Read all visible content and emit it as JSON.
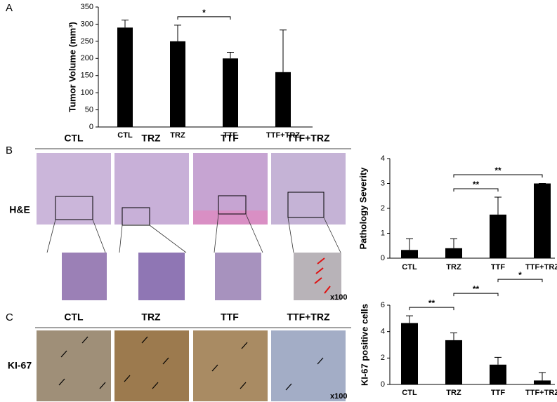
{
  "chart_data": [
    {
      "type": "bar",
      "y_label": "Tumor Volume (mm³)",
      "categories": [
        "CTL",
        "TRZ",
        "TTF",
        "TTF+TRZ"
      ],
      "values": [
        290,
        250,
        200,
        160
      ],
      "errors": [
        22,
        47,
        18,
        123
      ],
      "color": "#000000",
      "ylim": [
        0,
        350
      ],
      "yticks": [
        0,
        50,
        100,
        150,
        200,
        250,
        300,
        350
      ],
      "annotations": [
        {
          "text": "*",
          "between": [
            1,
            2
          ]
        }
      ]
    },
    {
      "type": "bar",
      "y_label": "Pathology Severity",
      "categories": [
        "CTL",
        "TRZ",
        "TTF",
        "TTF+TRZ"
      ],
      "values": [
        0.33,
        0.4,
        1.75,
        3.0
      ],
      "errors": [
        0.45,
        0.38,
        0.7,
        0
      ],
      "color": "#000000",
      "ylim": [
        0,
        4
      ],
      "yticks": [
        0,
        1,
        2,
        3,
        4
      ],
      "annotations": [
        {
          "text": "**",
          "between": [
            1,
            2
          ]
        },
        {
          "text": "**",
          "between": [
            1,
            3
          ]
        }
      ]
    },
    {
      "type": "bar",
      "y_label": "KI-67 positive cells",
      "categories": [
        "CTL",
        "TRZ",
        "TTF",
        "TTF+TRZ"
      ],
      "values": [
        4.65,
        3.35,
        1.5,
        0.3
      ],
      "errors": [
        0.55,
        0.55,
        0.55,
        0.6
      ],
      "color": "#000000",
      "ylim": [
        0,
        6
      ],
      "yticks": [
        0,
        2,
        4,
        6
      ],
      "annotations": [
        {
          "text": "**",
          "between": [
            0,
            1
          ]
        },
        {
          "text": "**",
          "between": [
            1,
            2
          ]
        },
        {
          "text": "*",
          "between": [
            2,
            3
          ]
        }
      ]
    }
  ],
  "figure": {
    "panels": [
      "A",
      "B",
      "C"
    ],
    "he_row": {
      "columns": [
        "CTL",
        "TRZ",
        "TTF",
        "TTF+TRZ"
      ],
      "row_label": "H&E",
      "magnification": "x100"
    },
    "ki67_row": {
      "columns": [
        "CTL",
        "TRZ",
        "TTF",
        "TTF+TRZ"
      ],
      "row_label": "KI-67",
      "magnification": "x100"
    }
  }
}
